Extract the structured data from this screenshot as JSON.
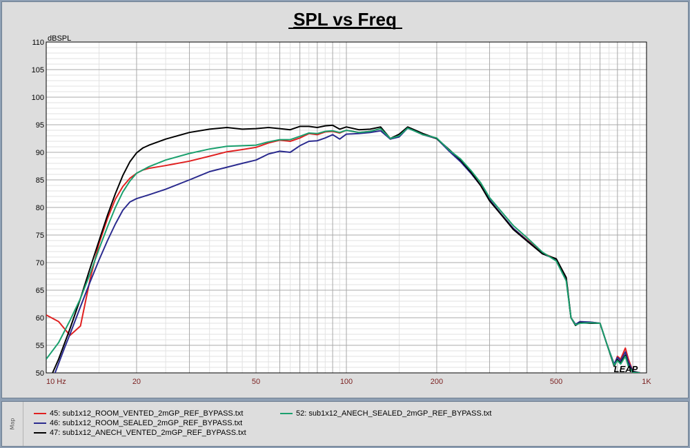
{
  "chart_data": {
    "type": "line",
    "title": "SPL vs Freq",
    "ylabel": "dBSPL",
    "xlabel": "",
    "x_scale": "log",
    "xlim": [
      10,
      1000
    ],
    "ylim": [
      50,
      110
    ],
    "y_ticks": [
      50,
      55,
      60,
      65,
      70,
      75,
      80,
      85,
      90,
      95,
      100,
      105,
      110
    ],
    "x_tick_labels": [
      {
        "value": 10,
        "label": "10  Hz"
      },
      {
        "value": 20,
        "label": "20"
      },
      {
        "value": 50,
        "label": "50"
      },
      {
        "value": 100,
        "label": "100"
      },
      {
        "value": 200,
        "label": "200"
      },
      {
        "value": 500,
        "label": "500"
      },
      {
        "value": 1000,
        "label": "1K"
      }
    ],
    "grid": true,
    "legend_position": "bottom",
    "series": [
      {
        "name": "45: sub1x12_ROOM_VENTED_2mGP_REF_BYPASS.txt",
        "color": "#e02020",
        "x": [
          10,
          11,
          12,
          13,
          14,
          15,
          16,
          17,
          18,
          19,
          20,
          21,
          22,
          25,
          30,
          35,
          40,
          45,
          50,
          55,
          60,
          65,
          70,
          75,
          80,
          85,
          90,
          95,
          100,
          110,
          120,
          130,
          140,
          150,
          160,
          170,
          180,
          200,
          220,
          240,
          260,
          280,
          300,
          330,
          360,
          400,
          450,
          500,
          540,
          560,
          580,
          600,
          650,
          700,
          740,
          780,
          800,
          820,
          850,
          870,
          900,
          950
        ],
        "y": [
          60.5,
          59.3,
          56.8,
          58.5,
          67,
          73.5,
          78,
          81.5,
          83.8,
          85.3,
          86.2,
          86.8,
          87.1,
          87.6,
          88.4,
          89.3,
          90.1,
          90.5,
          90.9,
          91.7,
          92.2,
          92,
          92.6,
          93.4,
          93.2,
          93.7,
          93.8,
          93.5,
          94,
          93.6,
          93.8,
          94.3,
          92.4,
          93,
          94.5,
          93.8,
          93.2,
          92.5,
          90.3,
          88.5,
          86.3,
          84,
          81.4,
          78.6,
          76.2,
          74.1,
          71.8,
          70.6,
          67,
          60,
          58.8,
          59.2,
          59.2,
          59,
          55,
          51.4,
          53,
          52.5,
          54.5,
          52.5,
          50.3,
          50
        ]
      },
      {
        "name": "46: sub1x12_ROOM_SEALED_2mGP_REF_BYPASS.txt",
        "color": "#2a2a8e",
        "x": [
          10,
          10.7,
          11.5,
          12,
          13,
          14,
          15,
          16,
          17,
          18,
          19,
          20,
          22,
          25,
          30,
          35,
          40,
          45,
          50,
          55,
          60,
          65,
          70,
          75,
          80,
          85,
          90,
          95,
          100,
          110,
          120,
          130,
          140,
          150,
          160,
          170,
          180,
          200,
          220,
          240,
          260,
          280,
          300,
          330,
          360,
          400,
          450,
          500,
          540,
          560,
          580,
          600,
          650,
          700,
          740,
          780,
          800,
          820,
          850,
          870,
          900,
          950
        ],
        "y": [
          48,
          50,
          54.5,
          57,
          62,
          66.5,
          70.5,
          74,
          77,
          79.5,
          81,
          81.6,
          82.3,
          83.3,
          85,
          86.5,
          87.3,
          88,
          88.6,
          89.7,
          90.2,
          90,
          91.2,
          92,
          92.1,
          92.6,
          93.2,
          92.4,
          93.3,
          93.4,
          93.6,
          93.9,
          92.4,
          92.8,
          94.4,
          93.8,
          93.2,
          92.5,
          90.2,
          88.3,
          86.2,
          84,
          81.4,
          78.6,
          76.2,
          74,
          71.6,
          70.6,
          67,
          60,
          58.8,
          59.3,
          59.2,
          59,
          55,
          51.6,
          52.8,
          52.2,
          53.8,
          52,
          50.3,
          50
        ]
      },
      {
        "name": "47: sub1x12_ANECH_VENTED_2mGP_REF_BYPASS.txt",
        "color": "#000000",
        "x": [
          10,
          10.5,
          11,
          12,
          13,
          14,
          15,
          16,
          17,
          18,
          19,
          20,
          21,
          22,
          25,
          30,
          35,
          40,
          45,
          50,
          55,
          60,
          65,
          70,
          75,
          80,
          85,
          90,
          95,
          100,
          110,
          120,
          130,
          140,
          150,
          160,
          170,
          180,
          200,
          220,
          240,
          260,
          280,
          300,
          330,
          360,
          400,
          450,
          500,
          540,
          560,
          580,
          600,
          650,
          700,
          740,
          780,
          800,
          820,
          850,
          870,
          900,
          950
        ],
        "y": [
          46,
          50,
          52.5,
          58,
          63.5,
          69,
          74,
          78.6,
          82.5,
          85.8,
          88.3,
          89.9,
          90.8,
          91.3,
          92.4,
          93.6,
          94.2,
          94.5,
          94.2,
          94.3,
          94.5,
          94.3,
          94.1,
          94.7,
          94.7,
          94.5,
          94.8,
          94.9,
          94.2,
          94.6,
          94.1,
          94.2,
          94.6,
          92.5,
          93.3,
          94.6,
          94,
          93.4,
          92.5,
          90.5,
          88.6,
          86.4,
          84,
          81.2,
          78.5,
          76,
          73.9,
          71.6,
          70.7,
          67.3,
          60,
          58.6,
          59.1,
          59,
          59,
          55,
          51.2,
          52.4,
          51.8,
          53.2,
          51.4,
          50.2,
          50
        ]
      },
      {
        "name": "52: sub1x12_ANECH_SEALED_2mGP_REF_BYPASS.txt",
        "color": "#1aa06e",
        "x": [
          10,
          11,
          12,
          13,
          14,
          15,
          16,
          17,
          18,
          19,
          20,
          22,
          25,
          30,
          35,
          40,
          45,
          50,
          55,
          60,
          65,
          70,
          75,
          80,
          85,
          90,
          95,
          100,
          110,
          120,
          130,
          140,
          150,
          160,
          170,
          180,
          200,
          220,
          240,
          260,
          280,
          300,
          330,
          360,
          400,
          450,
          500,
          540,
          560,
          580,
          600,
          650,
          700,
          740,
          780,
          800,
          820,
          850,
          870,
          900,
          950
        ],
        "y": [
          52.5,
          55.5,
          59.5,
          63.5,
          68,
          72.5,
          76.5,
          80,
          82.8,
          84.8,
          86.2,
          87.4,
          88.6,
          89.8,
          90.6,
          91.1,
          91.2,
          91.3,
          91.9,
          92.3,
          92.3,
          92.9,
          93.5,
          93.4,
          93.8,
          93.9,
          93.6,
          94,
          93.6,
          93.8,
          94.3,
          92.5,
          93,
          94.4,
          93.8,
          93.2,
          92.6,
          90.4,
          88.8,
          86.7,
          84.5,
          81.8,
          79.1,
          76.7,
          74.5,
          71.9,
          70.3,
          66.7,
          60,
          58.7,
          59,
          59.1,
          59,
          55,
          51.4,
          52.2,
          51.6,
          53,
          51.2,
          50.1,
          50
        ]
      }
    ]
  },
  "watermark": "LEAP",
  "map_label": "Map"
}
